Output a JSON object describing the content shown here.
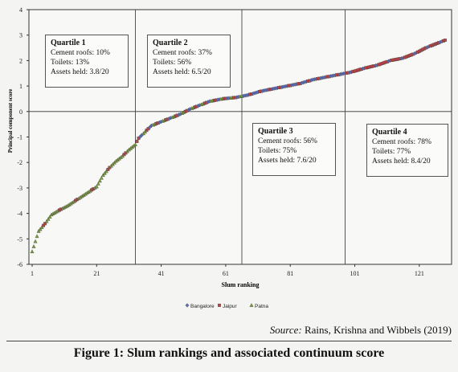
{
  "chart_data": {
    "type": "scatter",
    "xlabel": "Slum ranking",
    "ylabel": "Principal component score",
    "xlim": [
      0,
      131
    ],
    "ylim": [
      -6,
      4
    ],
    "x_ticks": [
      1,
      21,
      41,
      61,
      81,
      101,
      121
    ],
    "y_ticks": [
      -6,
      -5,
      -4,
      -3,
      -2,
      -1,
      0,
      1,
      2,
      3,
      4
    ],
    "grid": "vertical at quartile boundaries",
    "quartile_boundaries": [
      33,
      66,
      98
    ],
    "legend_position": "bottom",
    "series": [
      {
        "name": "Bangalore",
        "color": "#5a6fb5",
        "marker": "diamond"
      },
      {
        "name": "Jaipur",
        "color": "#b8474b",
        "marker": "square"
      },
      {
        "name": "Patna",
        "color": "#7a9b3a",
        "marker": "triangle"
      }
    ],
    "curve_points": [
      [
        1,
        -5.5
      ],
      [
        2,
        -5.1
      ],
      [
        3,
        -4.7
      ],
      [
        4,
        -4.55
      ],
      [
        5,
        -4.4
      ],
      [
        7,
        -4.05
      ],
      [
        9,
        -3.9
      ],
      [
        12,
        -3.7
      ],
      [
        15,
        -3.45
      ],
      [
        18,
        -3.2
      ],
      [
        21,
        -2.95
      ],
      [
        23,
        -2.5
      ],
      [
        25,
        -2.2
      ],
      [
        27,
        -1.95
      ],
      [
        29,
        -1.75
      ],
      [
        31,
        -1.5
      ],
      [
        33,
        -1.3
      ],
      [
        34,
        -1.05
      ],
      [
        36,
        -0.8
      ],
      [
        38,
        -0.55
      ],
      [
        41,
        -0.4
      ],
      [
        44,
        -0.25
      ],
      [
        47,
        -0.1
      ],
      [
        50,
        0.1
      ],
      [
        53,
        0.25
      ],
      [
        56,
        0.4
      ],
      [
        60,
        0.5
      ],
      [
        64,
        0.55
      ],
      [
        68,
        0.65
      ],
      [
        72,
        0.8
      ],
      [
        76,
        0.9
      ],
      [
        80,
        1.0
      ],
      [
        84,
        1.1
      ],
      [
        88,
        1.25
      ],
      [
        92,
        1.35
      ],
      [
        96,
        1.45
      ],
      [
        100,
        1.55
      ],
      [
        104,
        1.7
      ],
      [
        108,
        1.82
      ],
      [
        112,
        2.0
      ],
      [
        116,
        2.1
      ],
      [
        120,
        2.3
      ],
      [
        123,
        2.5
      ],
      [
        126,
        2.65
      ],
      [
        128,
        2.75
      ],
      [
        129,
        2.8
      ]
    ],
    "quartiles": [
      {
        "title": "Quartile 1",
        "lines": [
          "Cement roofs: 10%",
          "Toilets: 13%",
          "Assets held: 3.8/20"
        ]
      },
      {
        "title": "Quartile 2",
        "lines": [
          "Cement roofs: 37%",
          "Toilets: 56%",
          "Assets held: 6.5/20"
        ]
      },
      {
        "title": "Quartile 3",
        "lines": [
          "Cement roofs: 56%",
          "Toilets: 75%",
          "Assets held: 7.6/20"
        ]
      },
      {
        "title": "Quartile 4",
        "lines": [
          "Cement roofs: 78%",
          "Toilets: 77%",
          "Assets held: 8.4/20"
        ]
      }
    ]
  },
  "source": {
    "label": "Source:",
    "text": "Rains, Krishna and Wibbels (2019)"
  },
  "caption": "Figure 1: Slum rankings and associated continuum score"
}
